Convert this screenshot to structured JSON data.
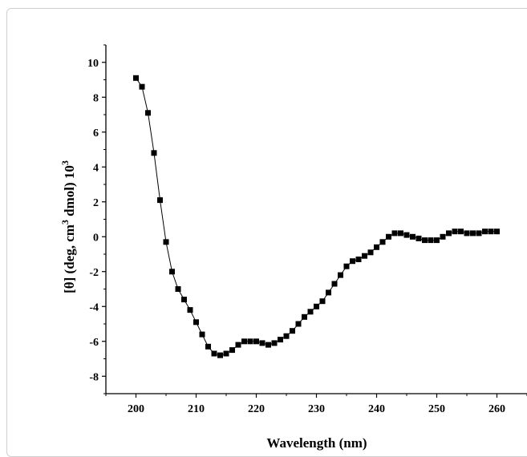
{
  "chart_data": {
    "type": "scatter",
    "line": true,
    "marker": "square",
    "marker_color": "#000000",
    "title": "",
    "xlabel": "Wavelength (nm)",
    "ylabel": "[θ] (deg, cm³ dmol) 10³",
    "ylabel_parts": {
      "prefix": "[θ] (deg, cm",
      "sup1": "3",
      "middle": " dmol) 10",
      "sup2": "3"
    },
    "xlim": [
      195,
      265
    ],
    "ylim": [
      -9,
      11
    ],
    "xticks": [
      200,
      210,
      220,
      230,
      240,
      250,
      260
    ],
    "yticks": [
      -8,
      -6,
      -4,
      -2,
      0,
      2,
      4,
      6,
      8,
      10
    ],
    "grid": false,
    "legend": "none",
    "series": [
      {
        "x": [
          200,
          201,
          202,
          203,
          204,
          205,
          206,
          207,
          208,
          209,
          210,
          211,
          212,
          213,
          214,
          215,
          216,
          217,
          218,
          219,
          220,
          221,
          222,
          223,
          224,
          225,
          226,
          227,
          228,
          229,
          230,
          231,
          232,
          233,
          234,
          235,
          236,
          237,
          238,
          239,
          240,
          241,
          242,
          243,
          244,
          245,
          246,
          247,
          248,
          249,
          250,
          251,
          252,
          253,
          254,
          255,
          256,
          257,
          258,
          259,
          260
        ],
        "y": [
          9.1,
          8.6,
          7.1,
          4.8,
          2.1,
          -0.3,
          -2.0,
          -3.0,
          -3.6,
          -4.2,
          -4.9,
          -5.6,
          -6.3,
          -6.7,
          -6.8,
          -6.7,
          -6.5,
          -6.2,
          -6.0,
          -6.0,
          -6.0,
          -6.1,
          -6.2,
          -6.1,
          -5.9,
          -5.7,
          -5.4,
          -5.0,
          -4.6,
          -4.3,
          -4.0,
          -3.7,
          -3.2,
          -2.7,
          -2.2,
          -1.7,
          -1.4,
          -1.3,
          -1.1,
          -0.9,
          -0.6,
          -0.3,
          0.0,
          0.2,
          0.2,
          0.1,
          0.0,
          -0.1,
          -0.2,
          -0.2,
          -0.2,
          0.0,
          0.2,
          0.3,
          0.3,
          0.2,
          0.2,
          0.2,
          0.3,
          0.3,
          0.3
        ]
      }
    ]
  }
}
